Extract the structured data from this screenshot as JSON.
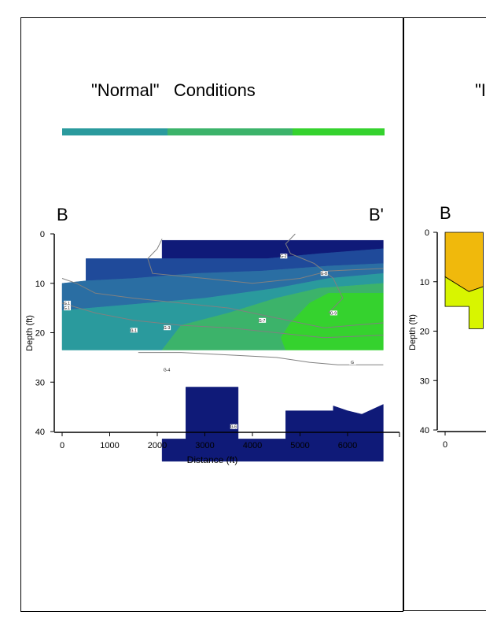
{
  "left_panel": {
    "title": "\"Normal\"   Conditions",
    "section_start": "B",
    "section_end": "B'",
    "scale_colors": [
      "#2a9a9d",
      "#3cb36a",
      "#35d22e"
    ],
    "chart_data": {
      "type": "heatmap",
      "title": "\"Normal\"   Conditions",
      "xlabel": "Distance   (ft)",
      "ylabel": "Depth  (ft)",
      "xlim": [
        0,
        6900
      ],
      "ylim": [
        40,
        0
      ],
      "x_ticks": [
        "0",
        "1000",
        "2000",
        "3000",
        "4000",
        "5000",
        "6000"
      ],
      "y_ticks": [
        "0",
        "10",
        "20",
        "30",
        "40"
      ],
      "colors": {
        "deep_navy": "#0f1a78",
        "blue": "#1f4a9a",
        "steel_blue": "#2a6ea3",
        "teal": "#2a9a9d",
        "green": "#3cb36a",
        "lime_green": "#35d22e",
        "contour": "#808080"
      },
      "zones": [
        {
          "name": "deep_navy_top",
          "color": "deep_navy",
          "polygon": [
            [
              2100,
              1.3
            ],
            [
              6750,
              1.3
            ],
            [
              6750,
              3
            ],
            [
              5400,
              4
            ],
            [
              4300,
              5
            ],
            [
              2100,
              5
            ]
          ]
        },
        {
          "name": "blue_band",
          "color": "blue",
          "polygon": [
            [
              500,
              5
            ],
            [
              2100,
              5
            ],
            [
              4300,
              5
            ],
            [
              5400,
              4
            ],
            [
              6750,
              3
            ],
            [
              6750,
              6
            ],
            [
              5600,
              6.5
            ],
            [
              4200,
              7.5
            ],
            [
              2800,
              8
            ],
            [
              1500,
              9
            ],
            [
              500,
              9.5
            ]
          ]
        },
        {
          "name": "steel_blue_band",
          "color": "steel_blue",
          "polygon": [
            [
              0,
              10
            ],
            [
              500,
              9.5
            ],
            [
              1500,
              9
            ],
            [
              2800,
              8
            ],
            [
              4200,
              7.5
            ],
            [
              5600,
              6.5
            ],
            [
              6750,
              6
            ],
            [
              6750,
              8
            ],
            [
              5600,
              9
            ],
            [
              4500,
              11
            ],
            [
              3000,
              13
            ],
            [
              1800,
              14
            ],
            [
              600,
              15
            ],
            [
              0,
              15.5
            ]
          ]
        },
        {
          "name": "teal_band",
          "color": "teal",
          "polygon": [
            [
              0,
              15.5
            ],
            [
              600,
              15
            ],
            [
              1800,
              14
            ],
            [
              3000,
              13
            ],
            [
              4500,
              11
            ],
            [
              5600,
              9
            ],
            [
              6750,
              8
            ],
            [
              6750,
              10
            ],
            [
              5400,
              11
            ],
            [
              4500,
              13
            ],
            [
              3500,
              16
            ],
            [
              2500,
              18.5
            ],
            [
              2100,
              23.5
            ],
            [
              0,
              23.5
            ]
          ]
        },
        {
          "name": "green_band",
          "color": "green",
          "polygon": [
            [
              2100,
              23.5
            ],
            [
              2500,
              18.5
            ],
            [
              3500,
              16
            ],
            [
              4500,
              13
            ],
            [
              5400,
              11
            ],
            [
              6750,
              10
            ],
            [
              6750,
              12
            ],
            [
              5600,
              12
            ],
            [
              5200,
              14
            ],
            [
              4800,
              18
            ],
            [
              4600,
              21
            ],
            [
              4700,
              23.5
            ]
          ]
        },
        {
          "name": "lime_green_band",
          "color": "lime_green",
          "polygon": [
            [
              4700,
              23.5
            ],
            [
              4600,
              21
            ],
            [
              4800,
              18
            ],
            [
              5200,
              14
            ],
            [
              5600,
              12
            ],
            [
              6750,
              12
            ],
            [
              6750,
              23.5
            ]
          ]
        },
        {
          "name": "navy_lower",
          "color": "deep_navy",
          "polygon": [
            [
              2100,
              41.5
            ],
            [
              2600,
              41.5
            ],
            [
              2600,
              31
            ],
            [
              3700,
              31
            ],
            [
              3700,
              41.5
            ],
            [
              4700,
              41.5
            ],
            [
              4700,
              35.8
            ],
            [
              5700,
              35.8
            ],
            [
              5700,
              34.8
            ],
            [
              6000,
              35.8
            ],
            [
              6300,
              36.5
            ],
            [
              6750,
              34.5
            ],
            [
              6750,
              46
            ],
            [
              2100,
              46
            ]
          ]
        }
      ],
      "contours": [
        {
          "name": "contour_top",
          "points": [
            [
              2100,
              1
            ],
            [
              2000,
              3
            ],
            [
              1800,
              5
            ],
            [
              1900,
              8
            ],
            [
              3000,
              9
            ],
            [
              4000,
              10
            ],
            [
              5000,
              9
            ],
            [
              5600,
              7.5
            ],
            [
              6750,
              7
            ]
          ]
        },
        {
          "name": "contour_well",
          "points": [
            [
              4900,
              0
            ],
            [
              4700,
              2
            ],
            [
              4800,
              4
            ],
            [
              5300,
              6
            ],
            [
              5700,
              9
            ],
            [
              5900,
              13
            ],
            [
              5600,
              16
            ]
          ]
        },
        {
          "name": "contour_left",
          "points": [
            [
              0,
              9
            ],
            [
              300,
              10
            ],
            [
              700,
              12
            ],
            [
              1500,
              13
            ],
            [
              2500,
              14
            ],
            [
              3500,
              15
            ],
            [
              4500,
              17
            ],
            [
              5500,
              19
            ],
            [
              6750,
              18
            ]
          ]
        },
        {
          "name": "contour_mid",
          "points": [
            [
              0,
              14
            ],
            [
              700,
              16
            ],
            [
              1500,
              17.5
            ],
            [
              2500,
              18.5
            ],
            [
              3500,
              19
            ],
            [
              4500,
              20
            ],
            [
              5500,
              21
            ],
            [
              6750,
              20.5
            ]
          ]
        },
        {
          "name": "contour_lower",
          "points": [
            [
              1600,
              24
            ],
            [
              2500,
              24
            ],
            [
              3500,
              24.5
            ],
            [
              4500,
              25
            ],
            [
              5200,
              26
            ],
            [
              5800,
              26.5
            ],
            [
              6750,
              26.5
            ]
          ]
        }
      ],
      "wells": [
        {
          "label": "G.1",
          "x": 100,
          "y": 14
        },
        {
          "label": "G.1",
          "x": 100,
          "y": 15
        },
        {
          "label": "G-1",
          "x": 1500,
          "y": 19.5
        },
        {
          "label": "G-3",
          "x": 2200,
          "y": 19
        },
        {
          "label": "G-4",
          "x": 2200,
          "y": 27.5
        },
        {
          "label": "G-6",
          "x": 3600,
          "y": 39
        },
        {
          "label": "G-2",
          "x": 4650,
          "y": 4.5
        },
        {
          "label": "G-7",
          "x": 4200,
          "y": 17.5
        },
        {
          "label": "G-8",
          "x": 5500,
          "y": 8
        },
        {
          "label": "G-9",
          "x": 5700,
          "y": 16
        },
        {
          "label": "G",
          "x": 6100,
          "y": 26
        }
      ]
    }
  },
  "right_panel": {
    "title_fragment": "\"I",
    "section_start": "B",
    "chart_data": {
      "type": "heatmap",
      "ylabel": "Depth  (ft)",
      "ylim": [
        40,
        0
      ],
      "x_ticks": [
        "0"
      ],
      "y_ticks": [
        "0",
        "10",
        "20",
        "30",
        "40"
      ],
      "colors": {
        "amber": "#f0b90c",
        "yellow_green": "#d8f500"
      },
      "zones": [
        {
          "name": "amber_zone",
          "color": "amber",
          "polygon": [
            [
              0,
              0
            ],
            [
              800,
              0
            ],
            [
              800,
              11
            ],
            [
              500,
              12
            ],
            [
              0,
              9
            ]
          ]
        },
        {
          "name": "yellow_green_zone",
          "color": "yellow_green",
          "polygon": [
            [
              0,
              9
            ],
            [
              500,
              12
            ],
            [
              800,
              11
            ],
            [
              800,
              19.5
            ],
            [
              500,
              19.5
            ],
            [
              500,
              15
            ],
            [
              0,
              15
            ]
          ]
        }
      ]
    }
  }
}
